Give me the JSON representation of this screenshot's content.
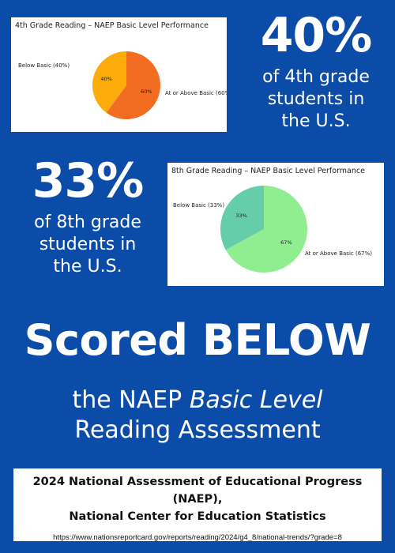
{
  "chart_data": [
    {
      "type": "pie",
      "title": "4th Grade Reading – NAEP Basic Level Performance",
      "slices": [
        {
          "label": "Below Basic (40%)",
          "value": 40,
          "pct_label": "40%",
          "color": "#fbab0a"
        },
        {
          "label": "At or Above Basic (60%)",
          "value": 60,
          "pct_label": "60%",
          "color": "#f26c22"
        }
      ]
    },
    {
      "type": "pie",
      "title": "8th Grade Reading – NAEP Basic Level Performance",
      "slices": [
        {
          "label": "Below Basic (33%)",
          "value": 33,
          "pct_label": "33%",
          "color": "#66cdaa"
        },
        {
          "label": "At or Above Basic (67%)",
          "value": 67,
          "pct_label": "67%",
          "color": "#90ee90"
        }
      ]
    }
  ],
  "stat4": {
    "value": "40%",
    "line1": "of 4th grade",
    "line2": "students in",
    "line3": "the U.S."
  },
  "stat8": {
    "value": "33%",
    "line1": "of 8th grade",
    "line2": "students in",
    "line3": "the U.S."
  },
  "headline": "Scored BELOW",
  "subline": {
    "prefix": "the NAEP ",
    "emphasis": "Basic Level",
    "line2": "Reading Assessment"
  },
  "source": {
    "line1": "2024 National Assessment of Educational Progress (NAEP),",
    "line2": "National Center for Education Statistics",
    "url": "https://www.nationsreportcard.gov/reports/reading/2024/g4_8/national-trends/?grade=8"
  },
  "colors": {
    "background": "#0b4ca8",
    "text": "#ffffff"
  }
}
